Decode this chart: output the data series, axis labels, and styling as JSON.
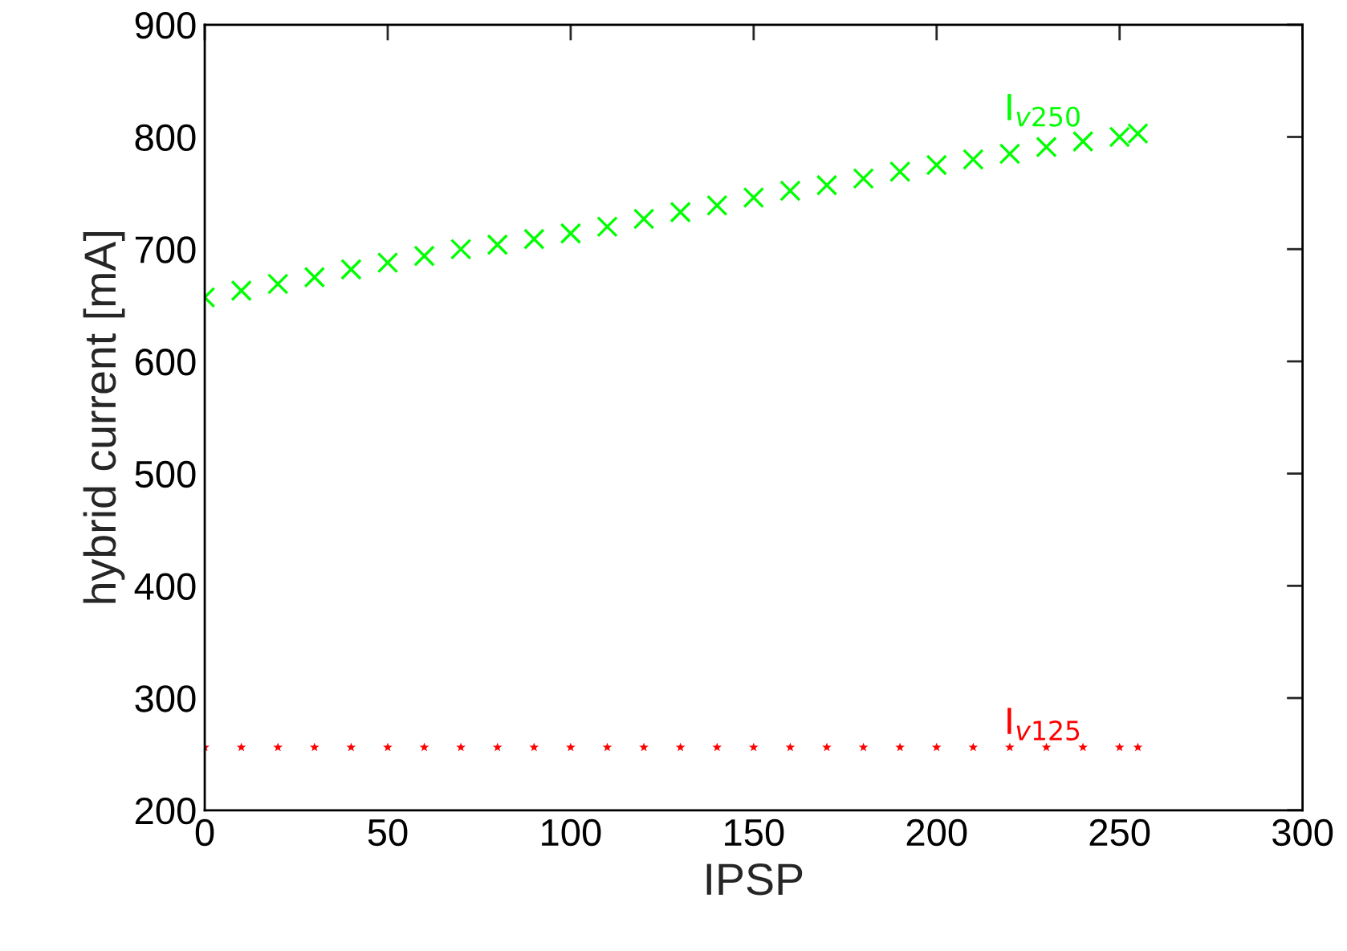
{
  "chart_data": {
    "type": "scatter",
    "xlabel": "IPSP",
    "ylabel": "hybrid current [mA]",
    "xlim": [
      0,
      300
    ],
    "xticks": [
      0,
      50,
      100,
      150,
      200,
      250,
      300
    ],
    "ylim": [
      200,
      900
    ],
    "yticks": [
      200,
      300,
      400,
      500,
      600,
      700,
      800,
      900
    ],
    "grid": false,
    "legend": false,
    "series": [
      {
        "name": "I$_{v250}$",
        "color": "#00ff00",
        "marker": "cross",
        "x": [
          0,
          10,
          20,
          30,
          40,
          50,
          60,
          70,
          80,
          90,
          100,
          110,
          120,
          130,
          140,
          150,
          160,
          170,
          180,
          190,
          200,
          210,
          220,
          230,
          240,
          250,
          255
        ],
        "values": [
          657,
          663,
          669,
          675,
          682,
          688,
          694,
          700,
          704,
          709,
          714,
          720,
          727,
          733,
          739,
          746,
          752,
          757,
          763,
          769,
          775,
          780,
          785,
          791,
          796,
          800,
          803
        ]
      },
      {
        "name": "I$_{v125}$",
        "color": "#ff0000",
        "marker": "star",
        "x": [
          0,
          10,
          20,
          30,
          40,
          50,
          60,
          70,
          80,
          90,
          100,
          110,
          120,
          130,
          140,
          150,
          160,
          170,
          180,
          190,
          200,
          210,
          220,
          230,
          240,
          250,
          255
        ],
        "values": [
          256,
          256,
          256,
          256,
          256,
          256,
          256,
          256,
          256,
          256,
          256,
          256,
          256,
          256,
          256,
          256,
          256,
          256,
          256,
          256,
          256,
          256,
          256,
          256,
          256,
          256,
          256
        ]
      }
    ]
  }
}
